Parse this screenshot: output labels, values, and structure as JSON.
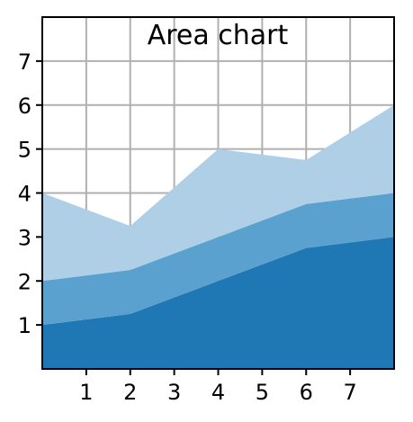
{
  "chart_data": {
    "type": "area",
    "stacked": true,
    "title": "Area chart",
    "x": [
      0,
      2,
      4,
      6,
      8
    ],
    "series": [
      {
        "values": [
          1.0,
          1.25,
          2.0,
          2.75,
          3.0
        ],
        "color": "#1f77b4"
      },
      {
        "values": [
          1.0,
          1.0,
          1.0,
          1.0,
          1.0
        ],
        "color": "#5ba1cf"
      },
      {
        "values": [
          2.0,
          1.0,
          2.0,
          1.0,
          2.0
        ],
        "color": "#aecfe6"
      }
    ],
    "xlim": [
      0,
      8
    ],
    "ylim": [
      0,
      8
    ],
    "xticks": [
      1,
      2,
      3,
      4,
      5,
      6,
      7
    ],
    "yticks": [
      1,
      2,
      3,
      4,
      5,
      6,
      7
    ],
    "grid": true,
    "grid_color": "#b0b0b0",
    "background": "#ffffff",
    "axis_color": "#000000"
  }
}
